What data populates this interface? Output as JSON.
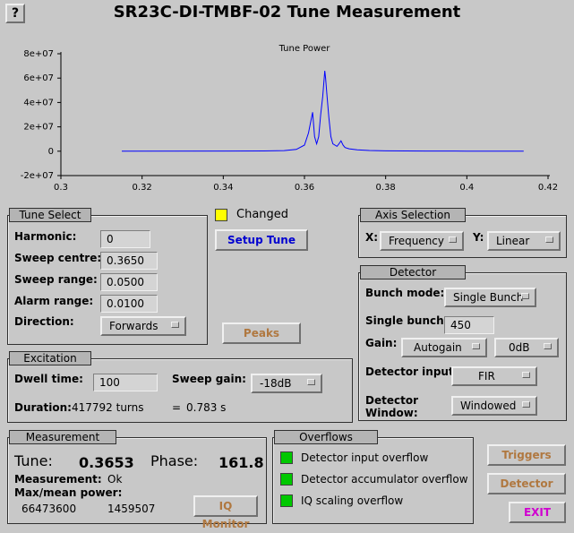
{
  "window": {
    "title": "SR23C-DI-TMBF-02 Tune Measurement",
    "help_label": "?"
  },
  "chart_data": {
    "type": "line",
    "title": "Tune Power",
    "xlim": [
      0.3,
      0.42
    ],
    "ylim": [
      -20000000,
      80000000
    ],
    "x_ticks": [
      0.3,
      0.32,
      0.34,
      0.36,
      0.38,
      0.4,
      0.42
    ],
    "x_tick_labels": [
      "0.3",
      "0.32",
      "0.34",
      "0.36",
      "0.38",
      "0.4",
      "0.42"
    ],
    "y_ticks": [
      -20000000,
      0,
      20000000,
      40000000,
      60000000,
      80000000
    ],
    "y_tick_labels": [
      "-2e+07",
      "0",
      "2e+07",
      "4e+07",
      "6e+07",
      "8e+07"
    ],
    "series": [
      {
        "color": "#0000ff",
        "x": [
          0.315,
          0.35,
          0.355,
          0.358,
          0.36,
          0.361,
          0.362,
          0.3625,
          0.363,
          0.3635,
          0.364,
          0.3645,
          0.365,
          0.3652,
          0.3655,
          0.366,
          0.3665,
          0.367,
          0.368,
          0.3685,
          0.369,
          0.3695,
          0.37,
          0.371,
          0.373,
          0.376,
          0.38,
          0.39,
          0.4,
          0.414
        ],
        "y": [
          0,
          200000,
          500000,
          1500000,
          5000000,
          15000000,
          32000000,
          12000000,
          6000000,
          12000000,
          30000000,
          45000000,
          66000000,
          60000000,
          48000000,
          28000000,
          12000000,
          6000000,
          4000000,
          6000000,
          8500000,
          5000000,
          3000000,
          2000000,
          1200000,
          600000,
          300000,
          150000,
          80000,
          0
        ]
      }
    ]
  },
  "changed": {
    "label": "Changed",
    "led_color": "#ffff00"
  },
  "setup_tune": {
    "label": "Setup Tune"
  },
  "peaks": {
    "label": "Peaks"
  },
  "tune_select": {
    "title": "Tune Select",
    "harmonic_label": "Harmonic:",
    "harmonic_value": "0",
    "sweep_centre_label": "Sweep centre:",
    "sweep_centre_value": "0.3650",
    "sweep_range_label": "Sweep range:",
    "sweep_range_value": "0.0500",
    "alarm_range_label": "Alarm range:",
    "alarm_range_value": "0.0100",
    "direction_label": "Direction:",
    "direction_value": "Forwards"
  },
  "axis_selection": {
    "title": "Axis Selection",
    "x_label": "X:",
    "x_value": "Frequency",
    "y_label": "Y:",
    "y_value": "Linear"
  },
  "detector": {
    "title": "Detector",
    "bunch_mode_label": "Bunch mode:",
    "bunch_mode_value": "Single Bunch",
    "single_bunch_label": "Single bunch:",
    "single_bunch_value": "450",
    "gain_label": "Gain:",
    "gain_mode_value": "Autogain",
    "gain_db_value": "0dB",
    "input_label": "Detector input:",
    "input_value": "FIR",
    "window_label_1": "Detector",
    "window_label_2": "Window:",
    "window_value": "Windowed"
  },
  "excitation": {
    "title": "Excitation",
    "dwell_label": "Dwell time:",
    "dwell_value": "100",
    "sweep_gain_label": "Sweep gain:",
    "sweep_gain_value": "-18dB",
    "duration_label": "Duration:",
    "duration_turns": "417792 turns",
    "duration_eq": "=",
    "duration_seconds": "0.783 s"
  },
  "measurement": {
    "title": "Measurement",
    "tune_label": "Tune:",
    "tune_value": "0.3653",
    "phase_label": "Phase:",
    "phase_value": "161.8",
    "measurement_label": "Measurement:",
    "measurement_value": "Ok",
    "power_label": "Max/mean power:",
    "max_power": "66473600",
    "mean_power": "1459507",
    "iq_button": "IQ Monitor"
  },
  "overflows": {
    "title": "Overflows",
    "led_color": "#00c800",
    "items": [
      {
        "label": "Detector input overflow"
      },
      {
        "label": "Detector accumulator overflow"
      },
      {
        "label": "IQ scaling overflow"
      }
    ]
  },
  "buttons": {
    "triggers": "Triggers",
    "detector": "Detector",
    "exit": "EXIT"
  }
}
